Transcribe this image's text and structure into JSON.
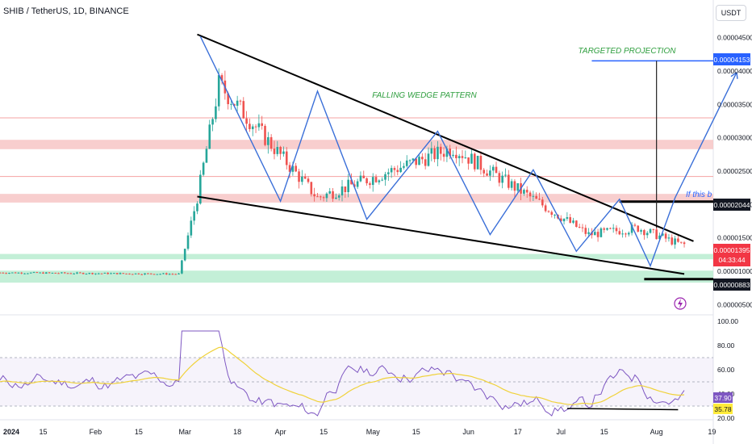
{
  "header": {
    "title": "SHIB / TetherUS, 1D, BINANCE",
    "currency_button": "USDT"
  },
  "annotations": {
    "wedge": "FALLING WEDGE PATTERN",
    "projection": "TARGETED PROJECTION",
    "truncated_note": "If this b"
  },
  "price_badges": {
    "target": "0.00004153",
    "breakout": "0.00002044",
    "last": "0.00001395",
    "countdown": "04:33:44",
    "support": "0.00000883"
  },
  "rsi_badges": {
    "rsi": "37.90",
    "ma": "35.78"
  },
  "colors": {
    "up": "#26a69a",
    "down": "#ef5350",
    "wedge_line": "#000000",
    "zigzag": "#3a6fd8",
    "resistance_zone": "#f7c6c6",
    "support_zone": "#b9ecd0",
    "rsi_line": "#7e57c2",
    "rsi_ma": "#f0d23a",
    "annotation_text": "#2e9e3e",
    "badge_dark": "#131722",
    "badge_blue": "#2962ff",
    "badge_red": "#f23645",
    "badge_yellow": "#ffeb3b"
  },
  "chart_data": [
    {
      "type": "candlestick",
      "symbol": "SHIB / TetherUS",
      "interval": "1D",
      "exchange": "BINANCE",
      "y_ticks": [
        "0.00000500",
        "0.00001000",
        "0.00001500",
        "0.00002000",
        "0.00002500",
        "0.00003000",
        "0.00003500",
        "0.00004000",
        "0.00004500"
      ],
      "ylim": [
        4.2e-06,
        4.63e-05
      ],
      "x_ticks": [
        "2024",
        "15",
        "Feb",
        "15",
        "Mar",
        "18",
        "Apr",
        "15",
        "May",
        "15",
        "Jun",
        "17",
        "Jul",
        "15",
        "Aug",
        "19"
      ],
      "series": [
        {
          "name": "price_path_trend",
          "x": [
            "2024-01-01",
            "2024-02-28",
            "2024-03-05",
            "2024-03-12",
            "2024-04-13",
            "2024-05-27",
            "2024-07-10",
            "2024-07-26",
            "2024-08-09"
          ],
          "y": [
            9.8e-06,
            9.6e-06,
            2.1e-05,
            3.8e-05,
            2.1e-05,
            2.85e-05,
            1.55e-05,
            1.65e-05,
            1.4e-05
          ]
        }
      ],
      "falling_wedge": {
        "upper": [
          [
            "2024-03-05",
            4.55e-05
          ],
          [
            "2024-08-13",
            1.45e-05
          ]
        ],
        "lower": [
          [
            "2024-03-05",
            2.12e-05
          ],
          [
            "2024-08-10",
            9.6e-06
          ]
        ]
      },
      "resistance_zones": [
        [
          2.83e-05,
          2.97e-05
        ],
        [
          2.03e-05,
          2.16e-05
        ]
      ],
      "support_zones": [
        [
          1.18e-05,
          1.26e-05
        ],
        [
          8.3e-06,
          1.01e-05
        ]
      ],
      "horizontal_levels": [
        3.3e-05,
        2.42e-05
      ],
      "target_level": 4.153e-05,
      "breakout_level": 2.044e-05,
      "support_level": 8.83e-06,
      "last_price": 1.395e-05
    },
    {
      "type": "line",
      "name": "RSI",
      "y_ticks": [
        "20.00",
        "40.00",
        "60.00",
        "80.00",
        "100.00"
      ],
      "ylim": [
        20,
        100
      ],
      "bands": [
        30,
        50,
        70
      ],
      "last_rsi": 37.9,
      "last_ma": 35.78
    }
  ]
}
